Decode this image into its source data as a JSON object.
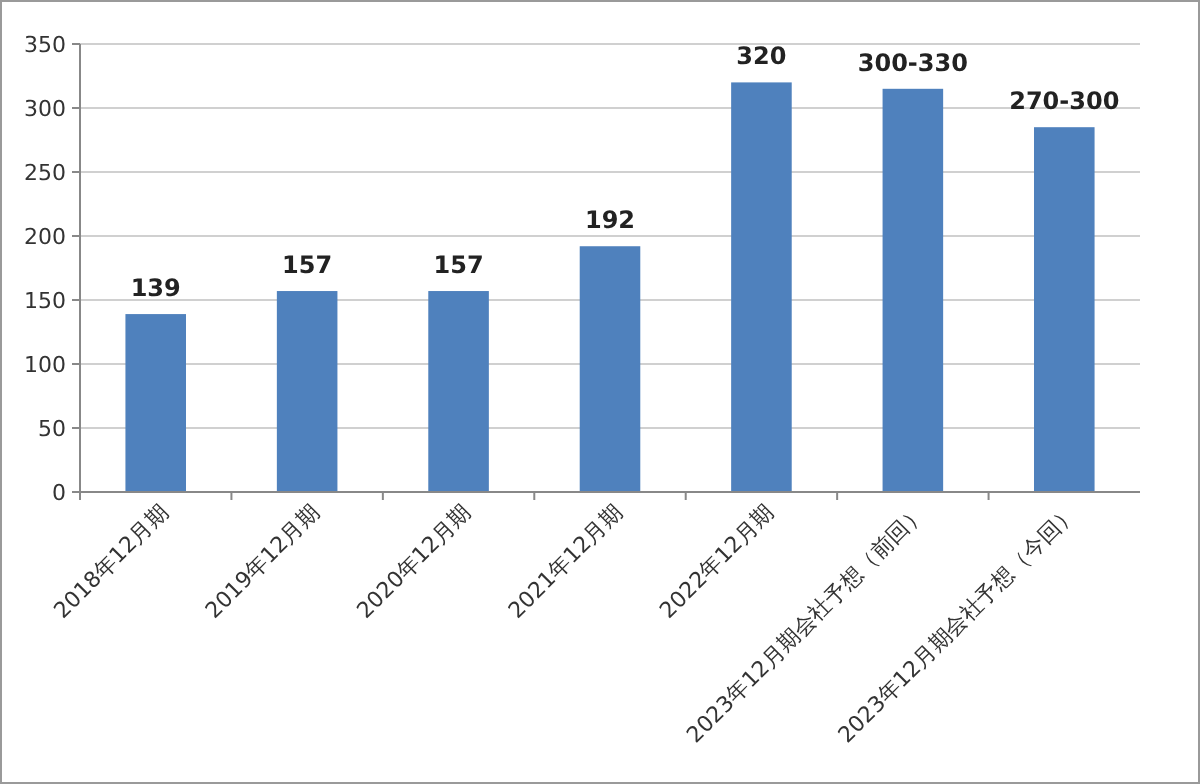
{
  "chart_data": {
    "type": "bar",
    "categories": [
      "2018年12月期",
      "2019年12月期",
      "2020年12月期",
      "2021年12月期",
      "2022年12月期",
      "2023年12月期会社予想（前回）",
      "2023年12月期会社予想（今回）"
    ],
    "values": [
      139,
      157,
      157,
      192,
      320,
      315,
      285
    ],
    "value_labels": [
      "139",
      "157",
      "157",
      "192",
      "320",
      "300-330",
      "270-300"
    ],
    "color": "#4f81bd",
    "ylim": [
      0,
      350
    ],
    "yticks": [
      0,
      50,
      100,
      150,
      200,
      250,
      300,
      350
    ],
    "grid": "y"
  }
}
